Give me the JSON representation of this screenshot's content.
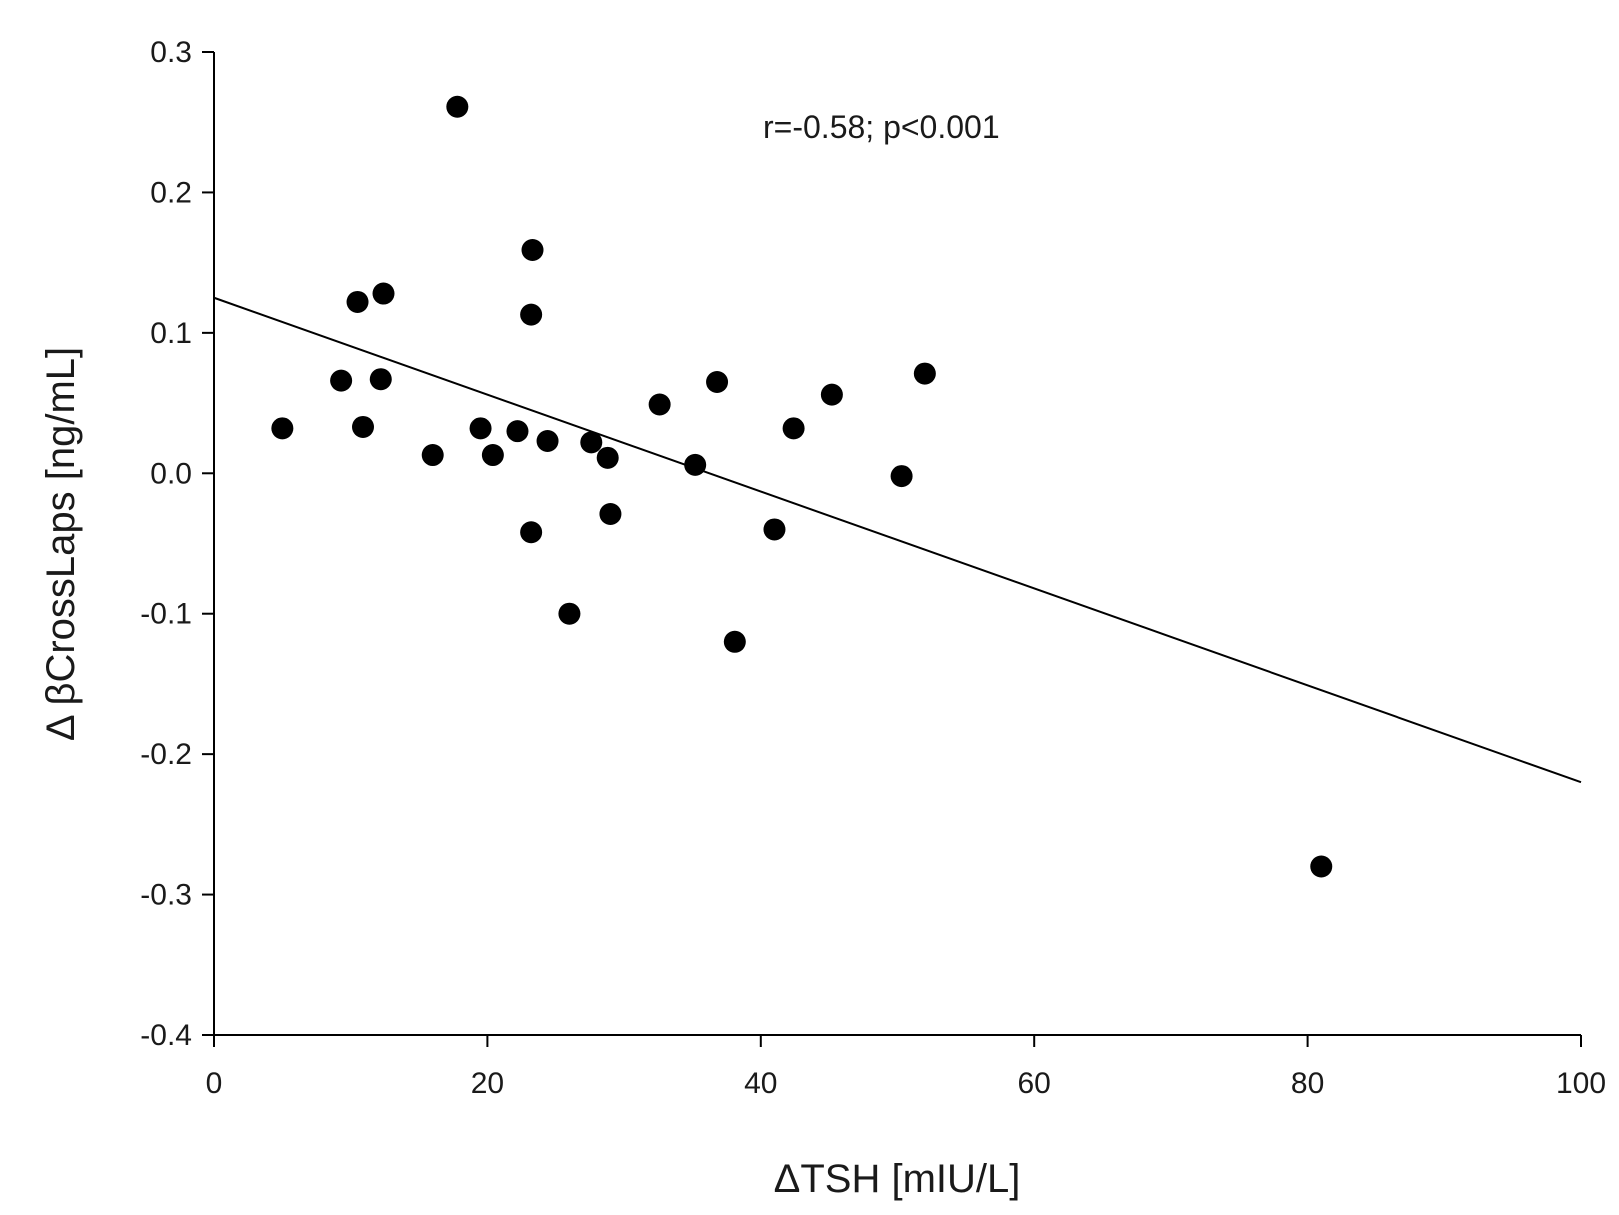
{
  "chart_data": {
    "type": "scatter",
    "title": "",
    "xlabel": "ΔTSH [mIU/L]",
    "ylabel": "Δ βCrossLaps [ng/mL]",
    "xlim": [
      0,
      100
    ],
    "ylim": [
      -0.4,
      0.3
    ],
    "grid": false,
    "x_ticks": [
      0,
      20,
      40,
      60,
      80,
      100
    ],
    "x_tick_labels": [
      "0",
      "20",
      "40",
      "60",
      "80",
      "100"
    ],
    "y_ticks": [
      0.3,
      0.2,
      0.1,
      0.0,
      -0.1,
      -0.2,
      -0.3,
      -0.4
    ],
    "y_tick_labels": [
      "0.3",
      "0.2",
      "0.1",
      "0.0",
      "-0.1",
      "-0.2",
      "-0.3",
      "-0.4"
    ],
    "annotation": "r=-0.58; p<0.001",
    "regression_line": {
      "x": [
        0,
        100
      ],
      "y": [
        0.125,
        -0.22
      ]
    },
    "series": [
      {
        "name": "patients",
        "points": [
          {
            "x": 5.0,
            "y": 0.032
          },
          {
            "x": 9.3,
            "y": 0.066
          },
          {
            "x": 10.5,
            "y": 0.122
          },
          {
            "x": 10.9,
            "y": 0.033
          },
          {
            "x": 12.2,
            "y": 0.067
          },
          {
            "x": 12.4,
            "y": 0.128
          },
          {
            "x": 16.0,
            "y": 0.013
          },
          {
            "x": 17.8,
            "y": 0.261
          },
          {
            "x": 19.5,
            "y": 0.032
          },
          {
            "x": 20.4,
            "y": 0.013
          },
          {
            "x": 22.2,
            "y": 0.03
          },
          {
            "x": 23.2,
            "y": 0.113
          },
          {
            "x": 23.2,
            "y": -0.042
          },
          {
            "x": 23.3,
            "y": 0.159
          },
          {
            "x": 24.4,
            "y": 0.023
          },
          {
            "x": 26.0,
            "y": -0.1
          },
          {
            "x": 27.6,
            "y": 0.022
          },
          {
            "x": 28.8,
            "y": 0.011
          },
          {
            "x": 29.0,
            "y": -0.029
          },
          {
            "x": 32.6,
            "y": 0.049
          },
          {
            "x": 35.2,
            "y": 0.006
          },
          {
            "x": 36.8,
            "y": 0.065
          },
          {
            "x": 38.1,
            "y": -0.12
          },
          {
            "x": 41.0,
            "y": -0.04
          },
          {
            "x": 42.4,
            "y": 0.032
          },
          {
            "x": 45.2,
            "y": 0.056
          },
          {
            "x": 50.3,
            "y": -0.002
          },
          {
            "x": 52.0,
            "y": 0.071
          },
          {
            "x": 81.0,
            "y": -0.28
          }
        ]
      }
    ]
  }
}
